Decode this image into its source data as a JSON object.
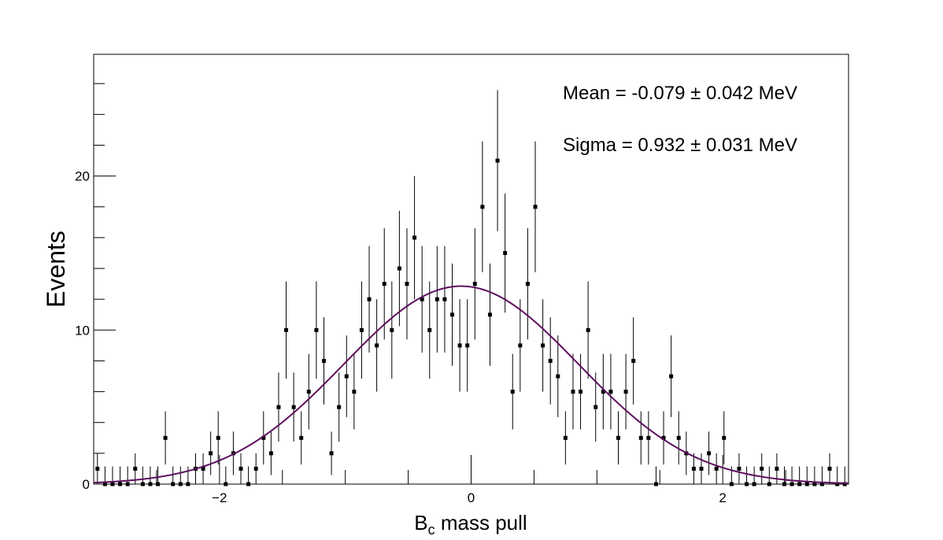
{
  "chart_data": {
    "type": "errorhist",
    "ylabel": "Events",
    "xlabel": {
      "main": "B",
      "sub": "c",
      "rest": " mass pull"
    },
    "annotations": [
      "Mean = -0.079 ± 0.042 MeV",
      "Sigma = 0.932 ± 0.031 MeV"
    ],
    "bin_width": 0.06,
    "x": [
      -2.97,
      -2.91,
      -2.85,
      -2.79,
      -2.73,
      -2.67,
      -2.61,
      -2.55,
      -2.49,
      -2.43,
      -2.37,
      -2.31,
      -2.25,
      -2.19,
      -2.13,
      -2.07,
      -2.01,
      -1.95,
      -1.89,
      -1.83,
      -1.77,
      -1.71,
      -1.65,
      -1.59,
      -1.53,
      -1.47,
      -1.41,
      -1.35,
      -1.29,
      -1.23,
      -1.17,
      -1.11,
      -1.05,
      -0.99,
      -0.93,
      -0.87,
      -0.81,
      -0.75,
      -0.69,
      -0.63,
      -0.57,
      -0.51,
      -0.45,
      -0.39,
      -0.33,
      -0.27,
      -0.21,
      -0.15,
      -0.09,
      -0.03,
      0.03,
      0.09,
      0.15,
      0.21,
      0.27,
      0.33,
      0.39,
      0.45,
      0.51,
      0.57,
      0.63,
      0.69,
      0.75,
      0.81,
      0.87,
      0.93,
      0.99,
      1.05,
      1.11,
      1.17,
      1.23,
      1.29,
      1.35,
      1.41,
      1.47,
      1.53,
      1.59,
      1.65,
      1.71,
      1.77,
      1.83,
      1.89,
      1.95,
      2.01,
      2.07,
      2.13,
      2.19,
      2.25,
      2.31,
      2.37,
      2.43,
      2.49,
      2.55,
      2.61,
      2.67,
      2.73,
      2.79,
      2.85,
      2.91,
      2.97
    ],
    "values": [
      1,
      0,
      0,
      0,
      0,
      1,
      0,
      0,
      0,
      3,
      0,
      0,
      0,
      1,
      1,
      2,
      3,
      0,
      2,
      1,
      0,
      1,
      3,
      2,
      5,
      10,
      5,
      3,
      6,
      10,
      8,
      2,
      5,
      7,
      6,
      10,
      12,
      9,
      13,
      10,
      14,
      13,
      16,
      12,
      10,
      12,
      12,
      11,
      9,
      9,
      13,
      18,
      11,
      21,
      15,
      6,
      9,
      13,
      18,
      9,
      8,
      7,
      3,
      6,
      6,
      10,
      5,
      6,
      6,
      3,
      6,
      8,
      3,
      3,
      0,
      3,
      7,
      3,
      2,
      1,
      1,
      2,
      1,
      3,
      0,
      1,
      0,
      0,
      1,
      0,
      1,
      0,
      0,
      0,
      0,
      0,
      0,
      1,
      0,
      0
    ],
    "errors": [
      1,
      1.15,
      1.15,
      1.15,
      1.15,
      1,
      1.15,
      1.15,
      1.15,
      1.73,
      1.15,
      1.15,
      1.15,
      1,
      1,
      1.41,
      1.73,
      1.15,
      1.41,
      1,
      1.15,
      1,
      1.73,
      1.41,
      2.24,
      3.16,
      2.24,
      1.73,
      2.45,
      3.16,
      2.83,
      1.41,
      2.24,
      2.65,
      2.45,
      3.16,
      3.46,
      3,
      3.61,
      3.16,
      3.74,
      3.61,
      4,
      3.46,
      3.16,
      3.46,
      3.46,
      3.32,
      3,
      3,
      3.61,
      4.24,
      3.32,
      4.58,
      3.87,
      2.45,
      3,
      3.61,
      4.24,
      3,
      2.83,
      2.65,
      1.73,
      2.45,
      2.45,
      3.16,
      2.24,
      2.45,
      2.45,
      1.73,
      2.45,
      2.83,
      1.73,
      1.73,
      1.15,
      1.73,
      2.65,
      1.73,
      1.41,
      1,
      1,
      1.41,
      1,
      1.73,
      1.15,
      1,
      1.15,
      1.15,
      1,
      1.15,
      1,
      1.15,
      1.15,
      1.15,
      1.15,
      1.15,
      1.15,
      1,
      1.15,
      1.15
    ],
    "fit": {
      "amplitude": 12.85,
      "mean": -0.079,
      "sigma": 0.932,
      "color": "#5e0f5e"
    },
    "color": "#000000",
    "xlim": [
      -3,
      3
    ],
    "ylim": [
      0,
      27.9
    ],
    "xticks": [
      {
        "value": -2,
        "label": "−2"
      },
      0,
      2
    ],
    "xminor": [
      -3,
      -2.5,
      -1.5,
      -1,
      -0.5,
      0.5,
      1,
      1.5,
      2.5,
      3
    ],
    "yticks": [
      0,
      10,
      20
    ],
    "yminor": [
      2,
      4,
      6,
      8,
      12,
      14,
      16,
      18,
      22,
      24,
      26
    ]
  }
}
